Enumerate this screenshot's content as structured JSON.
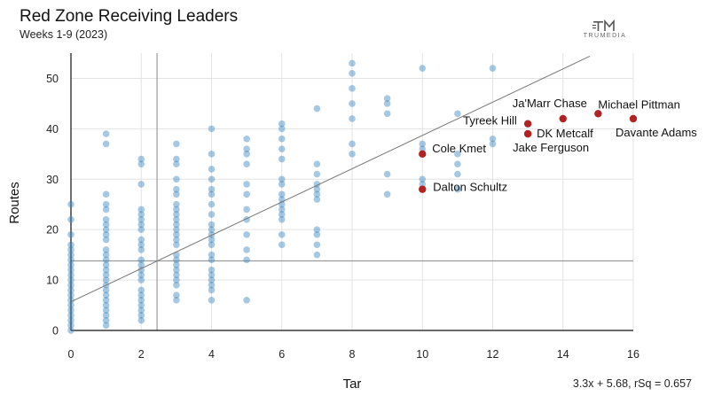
{
  "chart_data": {
    "type": "scatter",
    "title": "Red Zone Receiving Leaders",
    "subtitle": "Weeks 1-9 (2023)",
    "xlabel": "Tar",
    "ylabel": "Routes",
    "xlim": [
      0,
      16
    ],
    "ylim": [
      0,
      55
    ],
    "x_ticks": [
      0,
      2,
      4,
      6,
      8,
      10,
      12,
      14,
      16
    ],
    "y_ticks": [
      0,
      10,
      20,
      30,
      40,
      50
    ],
    "grid": true,
    "brand": "TRUMEDIA",
    "trendline": {
      "slope": 3.3,
      "intercept": 5.68,
      "label": "3.3x + 5.68, rSq = 0.657"
    },
    "reference_lines": {
      "x": 2.45,
      "y": 13.8
    },
    "highlighted": [
      {
        "name": "Michael Pittman",
        "x": 15,
        "y": 43
      },
      {
        "name": "Davante Adams",
        "x": 16,
        "y": 42
      },
      {
        "name": "Ja'Marr Chase",
        "x": 14,
        "y": 42
      },
      {
        "name": "Tyreek Hill",
        "x": 13,
        "y": 41
      },
      {
        "name": "DK Metcalf",
        "x": 13,
        "y": 39
      },
      {
        "name": "Jake Ferguson",
        "x": 13,
        "y": 39
      },
      {
        "name": "Cole Kmet",
        "x": 10,
        "y": 35
      },
      {
        "name": "Dalton Schultz",
        "x": 10,
        "y": 28
      }
    ],
    "points": [
      [
        0,
        0
      ],
      [
        0,
        1
      ],
      [
        0,
        2
      ],
      [
        0,
        3
      ],
      [
        0,
        4
      ],
      [
        0,
        5
      ],
      [
        0,
        6
      ],
      [
        0,
        7
      ],
      [
        0,
        8
      ],
      [
        0,
        9
      ],
      [
        0,
        10
      ],
      [
        0,
        11
      ],
      [
        0,
        12
      ],
      [
        0,
        13
      ],
      [
        0,
        14
      ],
      [
        0,
        15
      ],
      [
        0,
        16
      ],
      [
        0,
        17
      ],
      [
        0,
        19
      ],
      [
        0,
        22
      ],
      [
        0,
        25
      ],
      [
        1,
        1
      ],
      [
        1,
        2
      ],
      [
        1,
        3
      ],
      [
        1,
        4
      ],
      [
        1,
        5
      ],
      [
        1,
        6
      ],
      [
        1,
        7
      ],
      [
        1,
        8
      ],
      [
        1,
        9
      ],
      [
        1,
        10
      ],
      [
        1,
        11
      ],
      [
        1,
        12
      ],
      [
        1,
        13
      ],
      [
        1,
        14
      ],
      [
        1,
        15
      ],
      [
        1,
        16
      ],
      [
        1,
        18
      ],
      [
        1,
        19
      ],
      [
        1,
        20
      ],
      [
        1,
        21
      ],
      [
        1,
        22
      ],
      [
        1,
        24
      ],
      [
        1,
        25
      ],
      [
        1,
        27
      ],
      [
        1,
        37
      ],
      [
        1,
        39
      ],
      [
        2,
        2
      ],
      [
        2,
        3
      ],
      [
        2,
        4
      ],
      [
        2,
        5
      ],
      [
        2,
        6
      ],
      [
        2,
        7
      ],
      [
        2,
        8
      ],
      [
        2,
        10
      ],
      [
        2,
        11
      ],
      [
        2,
        12
      ],
      [
        2,
        13
      ],
      [
        2,
        14
      ],
      [
        2,
        16
      ],
      [
        2,
        17
      ],
      [
        2,
        18
      ],
      [
        2,
        20
      ],
      [
        2,
        21
      ],
      [
        2,
        22
      ],
      [
        2,
        23
      ],
      [
        2,
        24
      ],
      [
        2,
        29
      ],
      [
        2,
        33
      ],
      [
        2,
        34
      ],
      [
        3,
        6
      ],
      [
        3,
        7
      ],
      [
        3,
        9
      ],
      [
        3,
        10
      ],
      [
        3,
        11
      ],
      [
        3,
        12
      ],
      [
        3,
        13
      ],
      [
        3,
        14
      ],
      [
        3,
        15
      ],
      [
        3,
        17
      ],
      [
        3,
        18
      ],
      [
        3,
        19
      ],
      [
        3,
        20
      ],
      [
        3,
        21
      ],
      [
        3,
        22
      ],
      [
        3,
        23
      ],
      [
        3,
        24
      ],
      [
        3,
        25
      ],
      [
        3,
        27
      ],
      [
        3,
        28
      ],
      [
        3,
        30
      ],
      [
        3,
        33
      ],
      [
        3,
        34
      ],
      [
        3,
        37
      ],
      [
        4,
        6
      ],
      [
        4,
        8
      ],
      [
        4,
        9
      ],
      [
        4,
        10
      ],
      [
        4,
        11
      ],
      [
        4,
        12
      ],
      [
        4,
        14
      ],
      [
        4,
        15
      ],
      [
        4,
        17
      ],
      [
        4,
        18
      ],
      [
        4,
        19
      ],
      [
        4,
        20
      ],
      [
        4,
        21
      ],
      [
        4,
        23
      ],
      [
        4,
        25
      ],
      [
        4,
        27
      ],
      [
        4,
        28
      ],
      [
        4,
        30
      ],
      [
        4,
        32
      ],
      [
        4,
        35
      ],
      [
        4,
        40
      ],
      [
        5,
        6
      ],
      [
        5,
        14
      ],
      [
        5,
        16
      ],
      [
        5,
        19
      ],
      [
        5,
        22
      ],
      [
        5,
        24
      ],
      [
        5,
        27
      ],
      [
        5,
        29
      ],
      [
        5,
        33
      ],
      [
        5,
        35
      ],
      [
        5,
        36
      ],
      [
        5,
        38
      ],
      [
        6,
        17
      ],
      [
        6,
        19
      ],
      [
        6,
        22
      ],
      [
        6,
        23
      ],
      [
        6,
        24
      ],
      [
        6,
        25
      ],
      [
        6,
        26
      ],
      [
        6,
        27
      ],
      [
        6,
        29
      ],
      [
        6,
        30
      ],
      [
        6,
        34
      ],
      [
        6,
        36
      ],
      [
        6,
        38
      ],
      [
        6,
        40
      ],
      [
        6,
        41
      ],
      [
        7,
        15
      ],
      [
        7,
        17
      ],
      [
        7,
        19
      ],
      [
        7,
        20
      ],
      [
        7,
        26
      ],
      [
        7,
        27
      ],
      [
        7,
        28
      ],
      [
        7,
        29
      ],
      [
        7,
        31
      ],
      [
        7,
        33
      ],
      [
        7,
        44
      ],
      [
        8,
        35
      ],
      [
        8,
        37
      ],
      [
        8,
        42
      ],
      [
        8,
        45
      ],
      [
        8,
        48
      ],
      [
        8,
        51
      ],
      [
        8,
        53
      ],
      [
        9,
        27
      ],
      [
        9,
        31
      ],
      [
        9,
        43
      ],
      [
        9,
        45
      ],
      [
        9,
        46
      ],
      [
        10,
        29
      ],
      [
        10,
        30
      ],
      [
        10,
        36
      ],
      [
        10,
        37
      ],
      [
        10,
        52
      ],
      [
        11,
        28
      ],
      [
        11,
        31
      ],
      [
        11,
        33
      ],
      [
        11,
        35
      ],
      [
        11,
        43
      ],
      [
        12,
        37
      ],
      [
        12,
        38
      ],
      [
        12,
        52
      ]
    ]
  }
}
